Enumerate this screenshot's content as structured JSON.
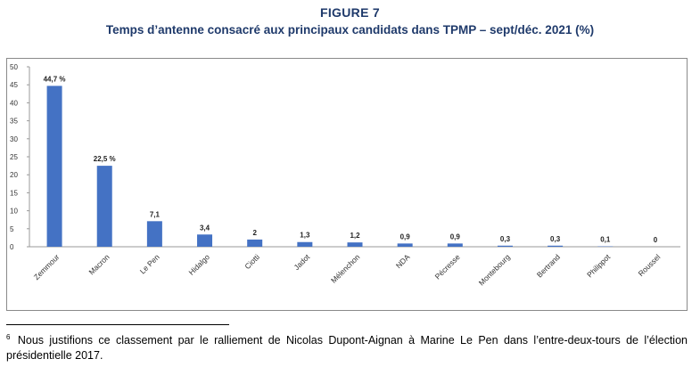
{
  "figure": {
    "label": "FIGURE 7",
    "title": "Temps d’antenne consacré aux principaux candidats dans TPMP – sept/déc. 2021 (%)"
  },
  "chart_data": {
    "type": "bar",
    "categories": [
      "Zemmour",
      "Macron",
      "Le Pen",
      "Hidalgo",
      "Ciotti",
      "Jadot",
      "Mélenchon",
      "NDA",
      "Pécresse",
      "Montebourg",
      "Bertrand",
      "Philippot",
      "Roussel"
    ],
    "values": [
      44.7,
      22.5,
      7.1,
      3.4,
      2,
      1.3,
      1.2,
      0.9,
      0.9,
      0.3,
      0.3,
      0.1,
      0
    ],
    "data_labels": [
      "44,7 %",
      "22,5 %",
      "7,1",
      "3,4",
      "2",
      "1,3",
      "1,2",
      "0,9",
      "0,9",
      "0,3",
      "0,3",
      "0,1",
      "0"
    ],
    "yticks": [
      0,
      5,
      10,
      15,
      20,
      25,
      30,
      35,
      40,
      45,
      50
    ],
    "ylim": [
      0,
      50
    ],
    "bar_color": "#4472c4",
    "grid": false,
    "legend": "none"
  },
  "footnote": {
    "marker": "6",
    "text": "Nous justifions ce classement par le ralliement de Nicolas Dupont-Aignan à Marine Le Pen dans l’entre-deux-tours de l’élection présidentielle 2017."
  }
}
